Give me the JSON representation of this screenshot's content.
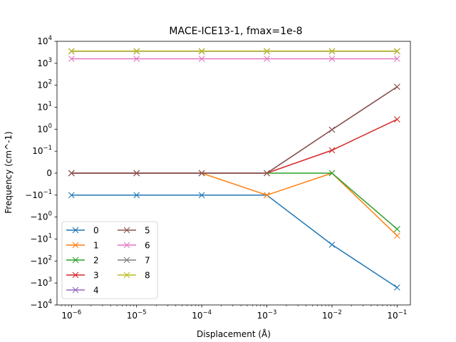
{
  "chart_data": {
    "type": "line",
    "title": "MACE-ICE13-1, fmax=1e-8",
    "xlabel": "Displacement (Å)",
    "ylabel": "Frequency (cm^-1)",
    "x_scale": "log",
    "y_scale": "symlog",
    "x": [
      1e-06,
      1e-05,
      0.0001,
      0.001,
      0.01,
      0.1
    ],
    "xlim": [
      6e-07,
      0.16
    ],
    "ylim": [
      -10000,
      10000
    ],
    "x_ticks": [
      {
        "base": "10",
        "exp": "−6"
      },
      {
        "base": "10",
        "exp": "−5"
      },
      {
        "base": "10",
        "exp": "−4"
      },
      {
        "base": "10",
        "exp": "−3"
      },
      {
        "base": "10",
        "exp": "−2"
      },
      {
        "base": "10",
        "exp": "−1"
      }
    ],
    "y_ticks": [
      {
        "value": 10000,
        "sign": "",
        "base": "10",
        "exp": "4"
      },
      {
        "value": 1000,
        "sign": "",
        "base": "10",
        "exp": "3"
      },
      {
        "value": 100,
        "sign": "",
        "base": "10",
        "exp": "2"
      },
      {
        "value": 10,
        "sign": "",
        "base": "10",
        "exp": "1"
      },
      {
        "value": 1,
        "sign": "",
        "base": "10",
        "exp": "0"
      },
      {
        "value": 0.1,
        "sign": "",
        "base": "10",
        "exp": "−1"
      },
      {
        "value": 0,
        "sign": "",
        "base": "0",
        "exp": ""
      },
      {
        "value": -0.1,
        "sign": "−",
        "base": "10",
        "exp": "−1"
      },
      {
        "value": -1,
        "sign": "−",
        "base": "10",
        "exp": "0"
      },
      {
        "value": -10,
        "sign": "−",
        "base": "10",
        "exp": "1"
      },
      {
        "value": -100,
        "sign": "−",
        "base": "10",
        "exp": "2"
      },
      {
        "value": -1000,
        "sign": "−",
        "base": "10",
        "exp": "3"
      },
      {
        "value": -10000,
        "sign": "−",
        "base": "10",
        "exp": "4"
      }
    ],
    "grid": false,
    "legend_position": "lower-left",
    "legend_columns": 2,
    "marker": "x",
    "series": [
      {
        "name": "0",
        "color": "#1f77b4",
        "values": [
          -0.1,
          -0.1,
          -0.1,
          -0.1,
          -18,
          -1600
        ]
      },
      {
        "name": "1",
        "color": "#ff7f0e",
        "values": [
          0,
          0,
          0,
          -0.1,
          0,
          -7
        ]
      },
      {
        "name": "2",
        "color": "#2ca02c",
        "values": [
          0,
          0,
          0,
          0,
          0,
          -3.5
        ]
      },
      {
        "name": "3",
        "color": "#d62728",
        "values": [
          0,
          0,
          0,
          0,
          0.11,
          2.8
        ]
      },
      {
        "name": "4",
        "color": "#9467bd",
        "values": [
          0,
          0,
          0,
          0,
          0.95,
          85
        ]
      },
      {
        "name": "5",
        "color": "#8c564b",
        "values": [
          0,
          0,
          0,
          0,
          0.95,
          85
        ]
      },
      {
        "name": "6",
        "color": "#e377c2",
        "values": [
          1600,
          1600,
          1600,
          1600,
          1600,
          1600
        ]
      },
      {
        "name": "7",
        "color": "#7f7f7f",
        "values": [
          3500,
          3500,
          3500,
          3500,
          3500,
          3500
        ]
      },
      {
        "name": "8",
        "color": "#bcbd22",
        "values": [
          3600,
          3600,
          3600,
          3600,
          3600,
          3600
        ]
      }
    ]
  }
}
